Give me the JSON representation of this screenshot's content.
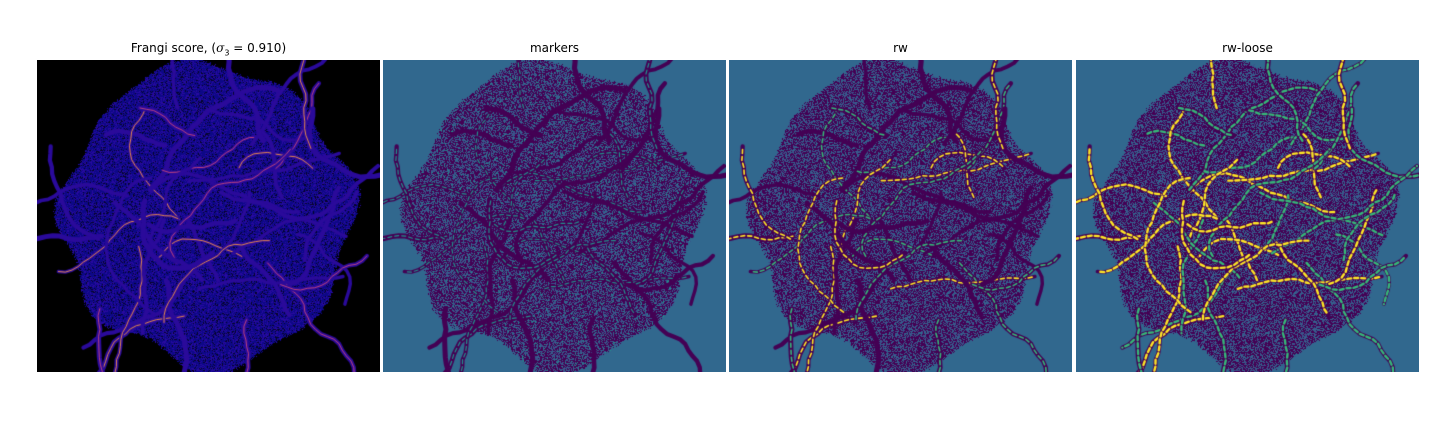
{
  "figure": {
    "panels": [
      {
        "id": "frangi",
        "title_prefix": "Frangi score, (",
        "title_symbol": "σ",
        "title_subscript": "3",
        "title_suffix": " = 0.910)",
        "colormap": "plasma",
        "background": "#000000"
      },
      {
        "id": "markers",
        "title": "markers",
        "colormap": "viridis",
        "background": "#31688e"
      },
      {
        "id": "rw",
        "title": "rw",
        "colormap": "viridis",
        "background": "#31688e"
      },
      {
        "id": "rw-loose",
        "title": "rw-loose",
        "colormap": "viridis",
        "background": "#31688e"
      }
    ]
  }
}
